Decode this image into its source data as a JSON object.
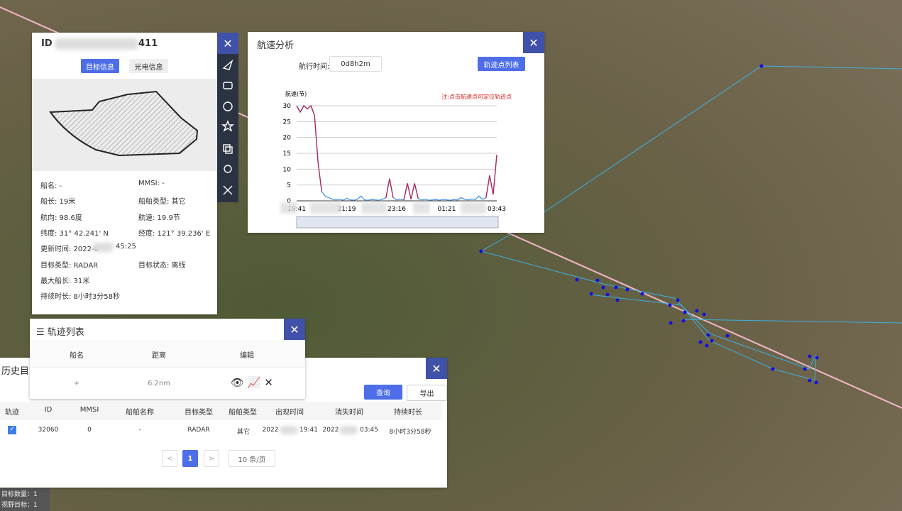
{
  "info_panel": {
    "id_label": "ID",
    "id_tail": "411",
    "tabs": [
      "目标信息",
      "光电信息"
    ],
    "fields": [
      [
        "船名: -",
        "MMSI: -"
      ],
      [
        "船长: 19米",
        "船舶类型: 其它"
      ],
      [
        "航向: 98.6度",
        "航速: 19.9节"
      ],
      [
        "纬度: 31° 42.241' N",
        "经度: 121° 39.236' E"
      ]
    ],
    "update_time": [
      "更新时间: 2022-0",
      "45:25"
    ],
    "fields2": [
      [
        "目标类型: RADAR",
        "目标状态: 离线"
      ],
      [
        "最大船长: 31米"
      ],
      [
        "持续时长: 8小时3分58秒"
      ]
    ]
  },
  "speed_panel": {
    "title": "航速分析",
    "duration_label": "航行时间:",
    "duration": "0d8h2m",
    "button": "轨迹点列表"
  },
  "chart_data": {
    "type": "line",
    "y_label": "航速(节)",
    "annotation": "注:点击航速点可定位轨迹点",
    "categories": [
      "19:41",
      null,
      null,
      null,
      null,
      null,
      null,
      null,
      null,
      null,
      null,
      null,
      null,
      null,
      "21:19",
      null,
      null,
      null,
      null,
      null,
      null,
      null,
      null,
      null,
      null,
      null,
      null,
      null,
      "23:16",
      null,
      null,
      null,
      null,
      null,
      null,
      null,
      null,
      null,
      null,
      null,
      null,
      null,
      "01:21",
      null,
      null,
      null,
      null,
      null,
      null,
      null,
      null,
      null,
      null,
      null,
      null,
      null,
      "03:43"
    ],
    "series": [
      {
        "color": "#4a90e2",
        "values": [
          30,
          28,
          30,
          29,
          30,
          27,
          12,
          3,
          1.5,
          1,
          0.5,
          0.3,
          0.5,
          0.2,
          0.8,
          0.3,
          0.2,
          0.5,
          1.5,
          0.3,
          0.2,
          0.4,
          0.3,
          0.2,
          0.5,
          1,
          7,
          1,
          0.3,
          0.5,
          0.3,
          5.5,
          0.5,
          5.5,
          0.8,
          0.3,
          0.5,
          0.2,
          0.3,
          0.4,
          0.2,
          0.5,
          0.3,
          0.2,
          0.4,
          0.3,
          1,
          0.5,
          0.3,
          0.6,
          0.4,
          1.5,
          0.5,
          1,
          8,
          2,
          14.5
        ]
      },
      {
        "color": "#b0245e",
        "values": [
          30,
          28,
          30,
          29,
          30,
          27,
          12,
          3,
          null,
          null,
          null,
          null,
          null,
          null,
          null,
          null,
          null,
          null,
          null,
          null,
          null,
          null,
          null,
          null,
          null,
          1,
          7,
          1,
          null,
          null,
          0.3,
          5.5,
          0.5,
          5.5,
          0.8,
          null,
          null,
          null,
          null,
          null,
          null,
          null,
          null,
          null,
          null,
          null,
          null,
          null,
          null,
          null,
          null,
          null,
          null,
          1,
          8,
          2,
          14.5
        ]
      }
    ],
    "ylim": [
      0,
      30
    ],
    "yticks": [
      0,
      5,
      10,
      15,
      20,
      25,
      30
    ],
    "grid": true
  },
  "track_list": {
    "title": "轨迹列表",
    "columns": [
      "船名",
      "距离",
      "编辑"
    ],
    "rows": [
      [
        "+",
        "6.2nm"
      ]
    ]
  },
  "history": {
    "title": "历史目",
    "buttons": [
      "查询",
      "导出"
    ],
    "columns": [
      "轨迹",
      "ID",
      "MMSI",
      "船舶名称",
      "目标类型",
      "船舶类型",
      "出现时间",
      "消失时间",
      "持续时长"
    ],
    "rows": [
      [
        "32060",
        "0",
        "-",
        "RADAR",
        "其它",
        "2022",
        "19:41",
        "2022",
        "03:45",
        "8小时3分58秒"
      ]
    ],
    "page": "1",
    "page_size": "10 条/页"
  },
  "status": [
    "目标数量：1",
    "视野目标：1"
  ]
}
